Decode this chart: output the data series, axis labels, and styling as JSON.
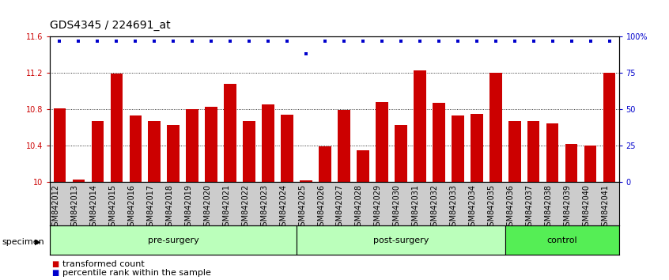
{
  "title": "GDS4345 / 224691_at",
  "categories": [
    "GSM842012",
    "GSM842013",
    "GSM842014",
    "GSM842015",
    "GSM842016",
    "GSM842017",
    "GSM842018",
    "GSM842019",
    "GSM842020",
    "GSM842021",
    "GSM842022",
    "GSM842023",
    "GSM842024",
    "GSM842025",
    "GSM842026",
    "GSM842027",
    "GSM842028",
    "GSM842029",
    "GSM842030",
    "GSM842031",
    "GSM842032",
    "GSM842033",
    "GSM842034",
    "GSM842035",
    "GSM842036",
    "GSM842037",
    "GSM842038",
    "GSM842039",
    "GSM842040",
    "GSM842041"
  ],
  "bar_values": [
    10.81,
    10.03,
    10.67,
    11.19,
    10.73,
    10.67,
    10.63,
    10.8,
    10.83,
    11.08,
    10.67,
    10.85,
    10.74,
    10.02,
    10.39,
    10.79,
    10.35,
    10.88,
    10.63,
    11.23,
    10.87,
    10.73,
    10.75,
    11.2,
    10.67,
    10.67,
    10.64,
    10.42,
    10.4,
    11.2
  ],
  "percentile_values": [
    97,
    97,
    97,
    97,
    97,
    97,
    97,
    97,
    97,
    97,
    97,
    97,
    97,
    88,
    97,
    97,
    97,
    97,
    97,
    97,
    97,
    97,
    97,
    97,
    97,
    97,
    97,
    97,
    97,
    97
  ],
  "bar_color": "#cc0000",
  "dot_color": "#0000cc",
  "ylim_left": [
    10.0,
    11.6
  ],
  "ylim_right": [
    0,
    100
  ],
  "yticks_left": [
    10.0,
    10.4,
    10.8,
    11.2,
    11.6
  ],
  "ytick_labels_left": [
    "10",
    "10.4",
    "10.8",
    "11.2",
    "11.6"
  ],
  "yticks_right": [
    0,
    25,
    50,
    75,
    100
  ],
  "ytick_labels_right": [
    "0",
    "25",
    "50",
    "75",
    "100%"
  ],
  "groups": [
    {
      "label": "pre-surgery",
      "start": 0,
      "end": 13,
      "color": "#bbffbb"
    },
    {
      "label": "post-surgery",
      "start": 13,
      "end": 24,
      "color": "#bbffbb"
    },
    {
      "label": "control",
      "start": 24,
      "end": 30,
      "color": "#55ee55"
    }
  ],
  "xlabel": "specimen",
  "legend_items": [
    {
      "label": "transformed count",
      "color": "#cc0000"
    },
    {
      "label": "percentile rank within the sample",
      "color": "#0000cc"
    }
  ],
  "title_fontsize": 10,
  "tick_fontsize": 7,
  "group_fontsize": 8,
  "legend_fontsize": 8
}
